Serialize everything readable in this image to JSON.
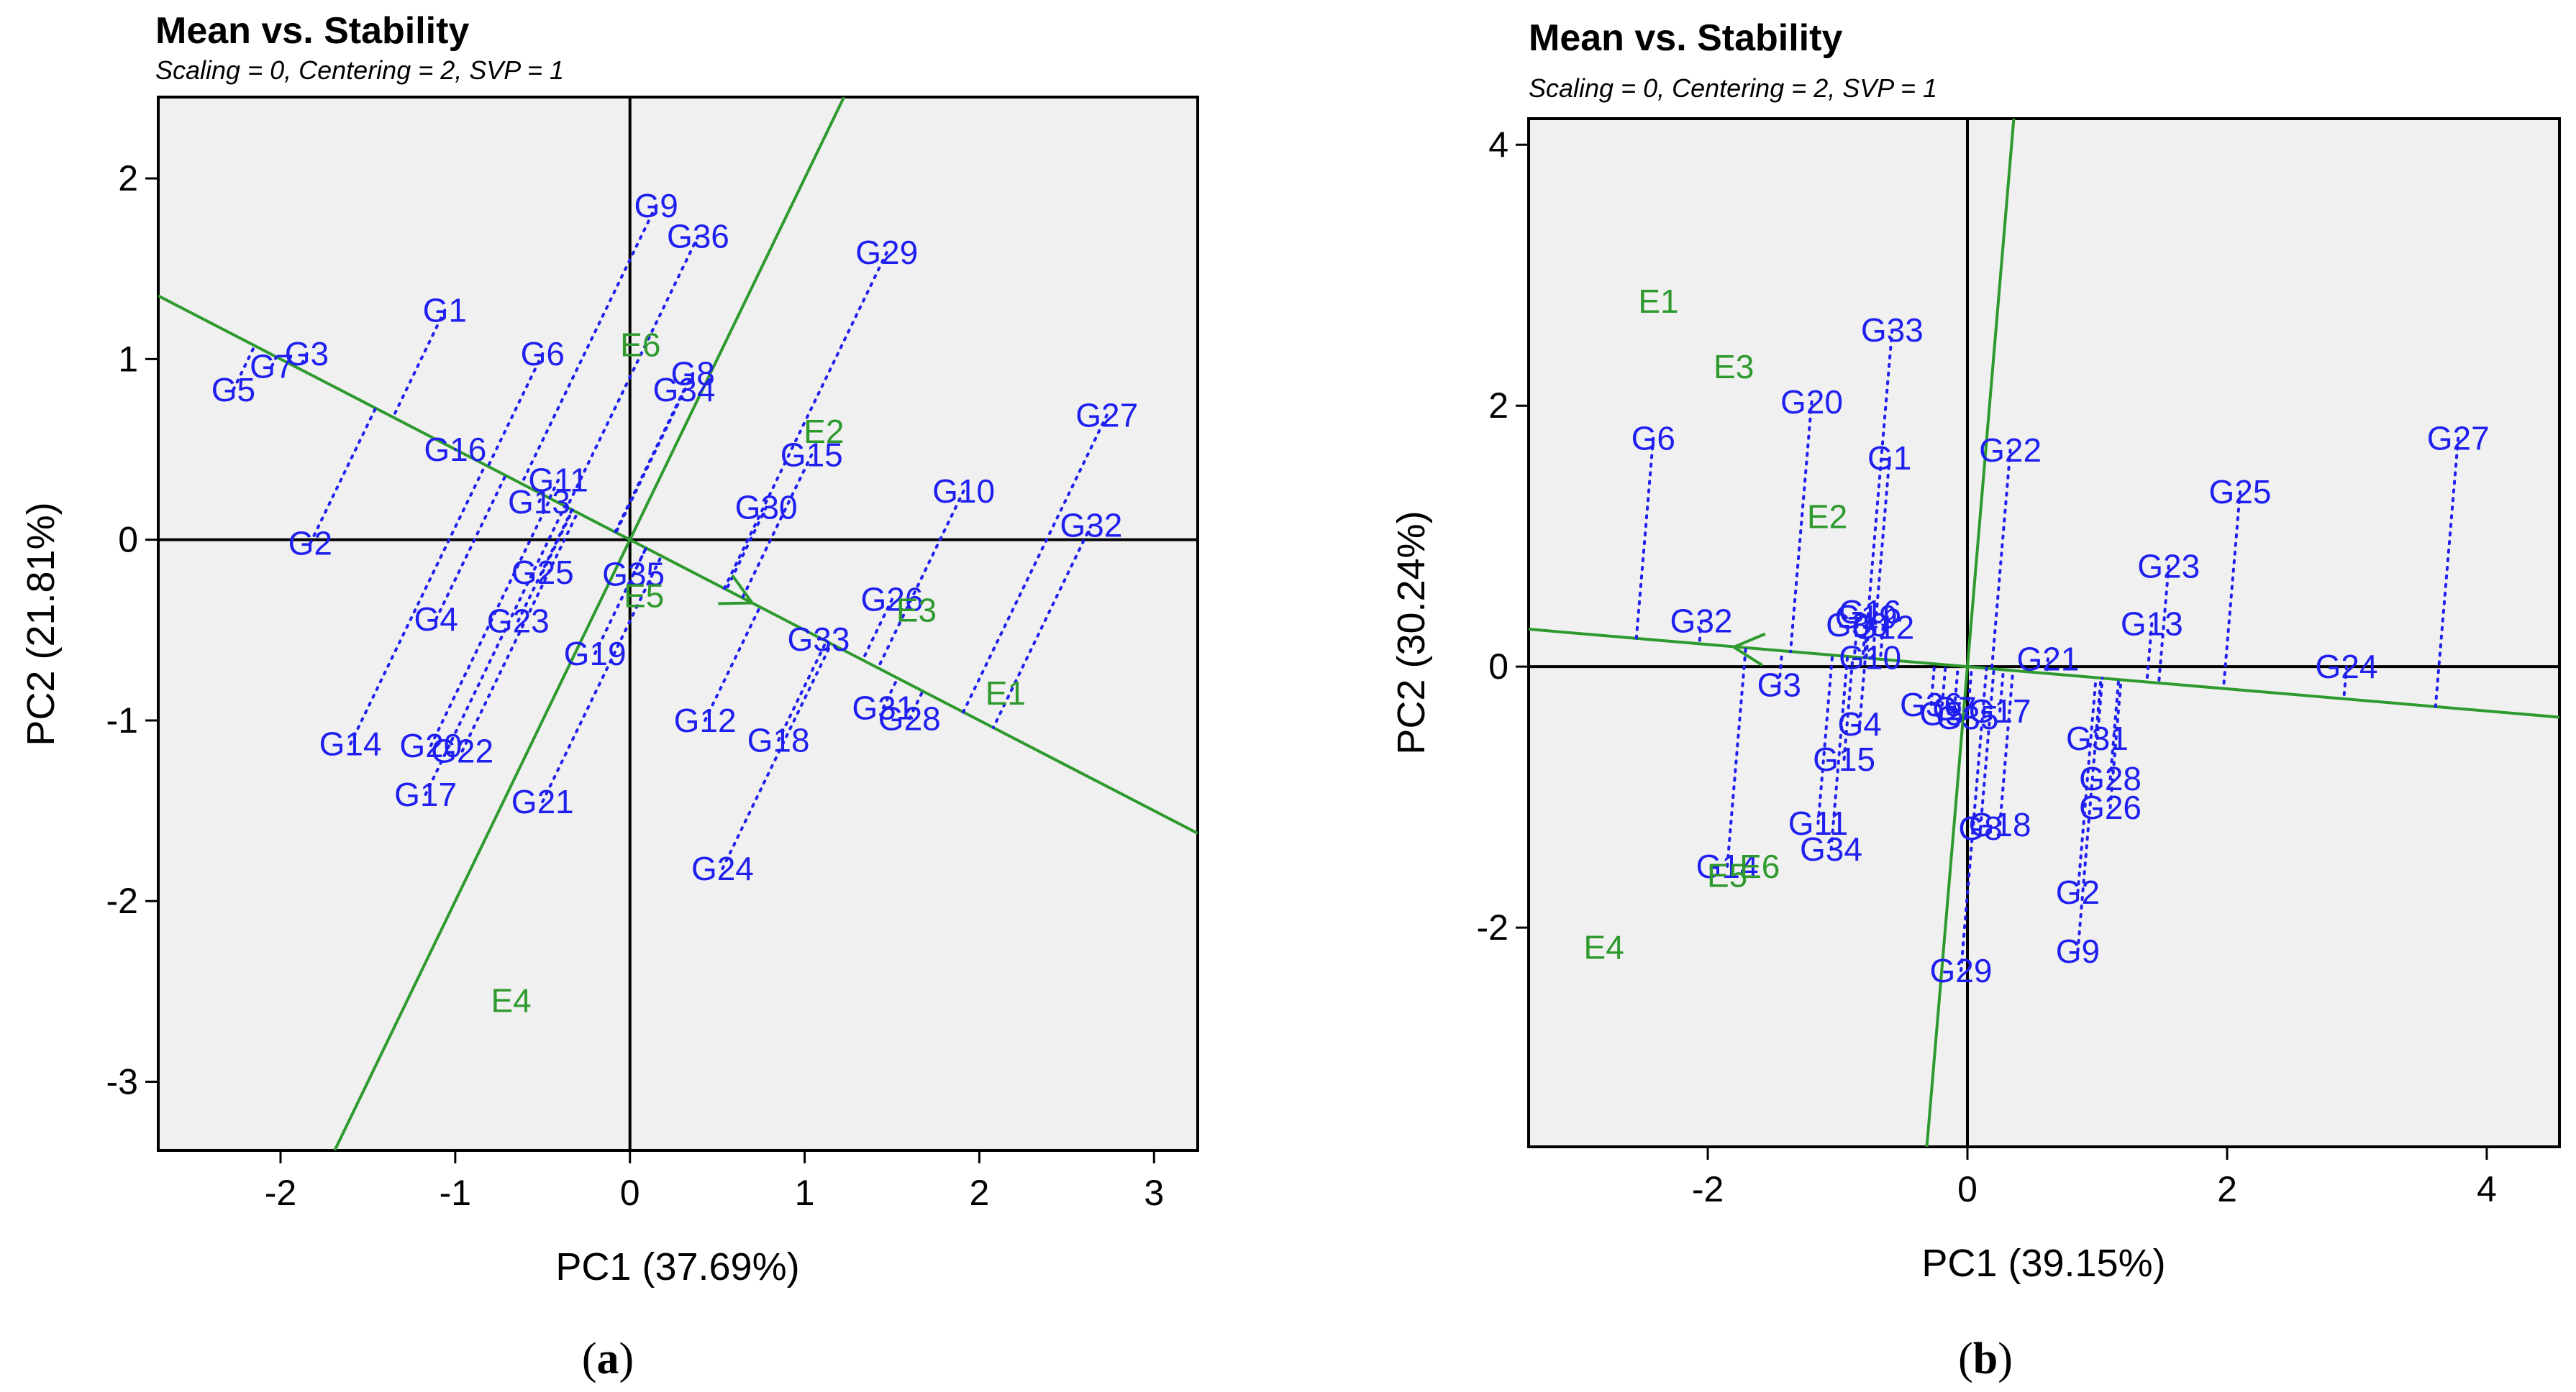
{
  "colors": {
    "genotype": "#1f1fef",
    "environment": "#2e9a2e",
    "plot_background": "#f0f0f0",
    "axis_line": "#000000"
  },
  "panel_letter_open": "(",
  "panel_letter_close": ")",
  "chart_data": [
    {
      "type": "scatter",
      "panel_letter": "a",
      "title": "Mean vs. Stability",
      "subtitle": "Scaling = 0, Centering = 2, SVP = 1",
      "xlabel": "PC1 (37.69%)",
      "ylabel": "PC2 (21.81%)",
      "xlim": [
        -2.7,
        3.25
      ],
      "ylim": [
        -3.38,
        2.45
      ],
      "xticks": [
        -2,
        -1,
        0,
        1,
        2,
        3
      ],
      "yticks": [
        -3,
        -2,
        -1,
        0,
        1,
        2
      ],
      "ate_slope": -0.5,
      "arrow_point": [
        0.7,
        -0.35
      ],
      "genotypes": [
        {
          "name": "G1",
          "x": -1.06,
          "y": 1.27
        },
        {
          "name": "G2",
          "x": -1.83,
          "y": -0.02
        },
        {
          "name": "G3",
          "x": -1.85,
          "y": 1.03
        },
        {
          "name": "G4",
          "x": -1.11,
          "y": -0.44
        },
        {
          "name": "G5",
          "x": -2.27,
          "y": 0.83
        },
        {
          "name": "G6",
          "x": -0.5,
          "y": 1.03
        },
        {
          "name": "G7",
          "x": -2.05,
          "y": 0.96
        },
        {
          "name": "G8",
          "x": 0.36,
          "y": 0.92
        },
        {
          "name": "G9",
          "x": 0.15,
          "y": 1.85
        },
        {
          "name": "G10",
          "x": 1.91,
          "y": 0.27
        },
        {
          "name": "G11",
          "x": -0.41,
          "y": 0.33
        },
        {
          "name": "G12",
          "x": 0.43,
          "y": -1.0
        },
        {
          "name": "G13",
          "x": -0.52,
          "y": 0.21
        },
        {
          "name": "G14",
          "x": -1.6,
          "y": -1.13
        },
        {
          "name": "G15",
          "x": 1.04,
          "y": 0.47
        },
        {
          "name": "G16",
          "x": -1.0,
          "y": 0.5
        },
        {
          "name": "G17",
          "x": -1.17,
          "y": -1.41
        },
        {
          "name": "G18",
          "x": 0.85,
          "y": -1.11
        },
        {
          "name": "G19",
          "x": -0.2,
          "y": -0.63
        },
        {
          "name": "G20",
          "x": -1.14,
          "y": -1.14
        },
        {
          "name": "G21",
          "x": -0.5,
          "y": -1.45
        },
        {
          "name": "G22",
          "x": -0.96,
          "y": -1.17
        },
        {
          "name": "G23",
          "x": -0.64,
          "y": -0.45
        },
        {
          "name": "G24",
          "x": 0.53,
          "y": -1.82
        },
        {
          "name": "G25",
          "x": -0.5,
          "y": -0.18
        },
        {
          "name": "G26",
          "x": 1.5,
          "y": -0.33
        },
        {
          "name": "G27",
          "x": 2.73,
          "y": 0.69
        },
        {
          "name": "G28",
          "x": 1.6,
          "y": -0.99
        },
        {
          "name": "G29",
          "x": 1.47,
          "y": 1.59
        },
        {
          "name": "G30",
          "x": 0.78,
          "y": 0.18
        },
        {
          "name": "G31",
          "x": 1.45,
          "y": -0.93
        },
        {
          "name": "G32",
          "x": 2.64,
          "y": 0.08
        },
        {
          "name": "G33",
          "x": 1.08,
          "y": -0.55
        },
        {
          "name": "G34",
          "x": 0.31,
          "y": 0.83
        },
        {
          "name": "G35",
          "x": 0.02,
          "y": -0.19
        },
        {
          "name": "G36",
          "x": 0.39,
          "y": 1.68
        }
      ],
      "environments": [
        {
          "name": "E1",
          "x": 2.15,
          "y": -0.85
        },
        {
          "name": "E2",
          "x": 1.11,
          "y": 0.6
        },
        {
          "name": "E3",
          "x": 1.64,
          "y": -0.39
        },
        {
          "name": "E4",
          "x": -0.68,
          "y": -2.55
        },
        {
          "name": "E5",
          "x": 0.08,
          "y": -0.31
        },
        {
          "name": "E6",
          "x": 0.06,
          "y": 1.08
        }
      ]
    },
    {
      "type": "scatter",
      "panel_letter": "b",
      "title": "Mean vs. Stability",
      "subtitle": "Scaling = 0, Centering = 2, SVP = 1",
      "xlabel": "PC1 (39.15%)",
      "ylabel": "PC2 (30.24%)",
      "xlim": [
        -3.38,
        4.56
      ],
      "ylim": [
        -3.68,
        4.2
      ],
      "xticks": [
        -2,
        0,
        2,
        4
      ],
      "yticks": [
        -2,
        0,
        2,
        4
      ],
      "ate_slope": -0.085,
      "arrow_point": [
        -1.8,
        0.15
      ],
      "genotypes": [
        {
          "name": "G1",
          "x": -0.6,
          "y": 1.6
        },
        {
          "name": "G2",
          "x": 0.85,
          "y": -1.73
        },
        {
          "name": "G3",
          "x": -1.45,
          "y": -0.14
        },
        {
          "name": "G4",
          "x": -0.83,
          "y": -0.44
        },
        {
          "name": "G5",
          "x": -0.2,
          "y": -0.36
        },
        {
          "name": "G6",
          "x": -2.42,
          "y": 1.75
        },
        {
          "name": "G7",
          "x": -0.1,
          "y": -0.32
        },
        {
          "name": "G8",
          "x": 0.1,
          "y": -1.24
        },
        {
          "name": "G9",
          "x": 0.85,
          "y": -2.18
        },
        {
          "name": "G10",
          "x": -0.75,
          "y": 0.07
        },
        {
          "name": "G11",
          "x": -1.15,
          "y": -1.2
        },
        {
          "name": "G12",
          "x": -0.65,
          "y": 0.3
        },
        {
          "name": "G13",
          "x": 1.42,
          "y": 0.33
        },
        {
          "name": "G14",
          "x": -1.85,
          "y": -1.53
        },
        {
          "name": "G15",
          "x": -0.95,
          "y": -0.71
        },
        {
          "name": "G16",
          "x": -0.75,
          "y": 0.42
        },
        {
          "name": "G17",
          "x": 0.25,
          "y": -0.34
        },
        {
          "name": "G18",
          "x": 0.25,
          "y": -1.21
        },
        {
          "name": "G19",
          "x": -0.78,
          "y": 0.38
        },
        {
          "name": "G20",
          "x": -1.2,
          "y": 2.03
        },
        {
          "name": "G21",
          "x": 0.62,
          "y": 0.06
        },
        {
          "name": "G22",
          "x": 0.33,
          "y": 1.66
        },
        {
          "name": "G23",
          "x": 1.55,
          "y": 0.77
        },
        {
          "name": "G24",
          "x": 2.92,
          "y": 0.0
        },
        {
          "name": "G25",
          "x": 2.1,
          "y": 1.34
        },
        {
          "name": "G26",
          "x": 1.1,
          "y": -1.08
        },
        {
          "name": "G27",
          "x": 3.78,
          "y": 1.75
        },
        {
          "name": "G28",
          "x": 1.1,
          "y": -0.86
        },
        {
          "name": "G29",
          "x": -0.05,
          "y": -2.33
        },
        {
          "name": "G30",
          "x": -0.85,
          "y": 0.32
        },
        {
          "name": "G31",
          "x": 1.0,
          "y": -0.55
        },
        {
          "name": "G32",
          "x": -2.05,
          "y": 0.35
        },
        {
          "name": "G33",
          "x": -0.58,
          "y": 2.58
        },
        {
          "name": "G34",
          "x": -1.05,
          "y": -1.4
        },
        {
          "name": "G35",
          "x": 0.0,
          "y": -0.39
        },
        {
          "name": "G36",
          "x": -0.28,
          "y": -0.29
        }
      ],
      "environments": [
        {
          "name": "E1",
          "x": -2.38,
          "y": 2.8
        },
        {
          "name": "E2",
          "x": -1.08,
          "y": 1.15
        },
        {
          "name": "E3",
          "x": -1.8,
          "y": 2.3
        },
        {
          "name": "E4",
          "x": -2.8,
          "y": -2.15
        },
        {
          "name": "E5",
          "x": -1.85,
          "y": -1.6
        },
        {
          "name": "E6",
          "x": -1.6,
          "y": -1.53
        }
      ]
    }
  ]
}
